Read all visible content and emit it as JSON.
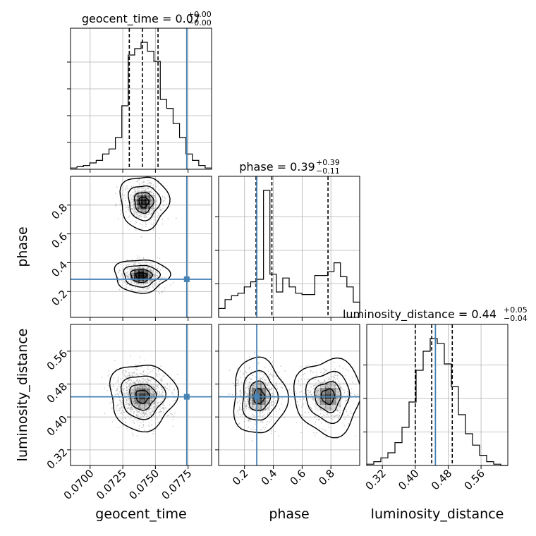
{
  "chart_data": {
    "type": "corner",
    "params": [
      "geocent_time",
      "phase",
      "luminosity_distance"
    ],
    "axis_labels": [
      "geocent_time",
      "phase",
      "luminosity_distance"
    ],
    "panel_titles": [
      {
        "name": "geocent_time",
        "median": "0.07",
        "plus": "+0.00",
        "minus": "−0.00"
      },
      {
        "name": "phase",
        "median": "0.39",
        "plus": "+0.39",
        "minus": "−0.11"
      },
      {
        "name": "luminosity_distance",
        "median": "0.44",
        "plus": "+0.05",
        "minus": "−0.04"
      }
    ],
    "ranges": {
      "geocent_time": [
        0.0685,
        0.0793
      ],
      "phase": [
        0.02,
        1.0
      ],
      "luminosity_distance": [
        0.282,
        0.625
      ]
    },
    "ticks": {
      "geocent_time": [
        {
          "v": 0.07,
          "label": "0.0700"
        },
        {
          "v": 0.0725,
          "label": "0.0725"
        },
        {
          "v": 0.075,
          "label": "0.0750"
        },
        {
          "v": 0.0775,
          "label": "0.0775"
        }
      ],
      "phase": [
        {
          "v": 0.2,
          "label": "0.2"
        },
        {
          "v": 0.4,
          "label": "0.4"
        },
        {
          "v": 0.6,
          "label": "0.6"
        },
        {
          "v": 0.8,
          "label": "0.8"
        }
      ],
      "luminosity_distance": [
        {
          "v": 0.32,
          "label": "0.32"
        },
        {
          "v": 0.4,
          "label": "0.40"
        },
        {
          "v": 0.48,
          "label": "0.48"
        },
        {
          "v": 0.56,
          "label": "0.56"
        }
      ]
    },
    "truth": {
      "geocent_time": 0.0774,
      "phase": 0.285,
      "luminosity_distance": 0.449
    },
    "quantiles": {
      "geocent_time": [
        0.073,
        0.074,
        0.0752
      ],
      "phase": [
        0.28,
        0.39,
        0.78
      ],
      "luminosity_distance": [
        0.4,
        0.44,
        0.49
      ]
    },
    "hist": {
      "geocent_time": [
        0.01,
        0.02,
        0.03,
        0.05,
        0.07,
        0.12,
        0.16,
        0.25,
        0.5,
        0.9,
        0.95,
        1.0,
        0.93,
        0.85,
        0.55,
        0.48,
        0.36,
        0.25,
        0.12,
        0.07,
        0.03,
        0.01
      ],
      "phase": [
        0.07,
        0.14,
        0.17,
        0.19,
        0.24,
        0.28,
        0.3,
        1.0,
        0.34,
        0.2,
        0.31,
        0.24,
        0.19,
        0.18,
        0.18,
        0.33,
        0.33,
        0.36,
        0.43,
        0.32,
        0.24,
        0.12
      ],
      "luminosity_distance": [
        0.01,
        0.03,
        0.06,
        0.1,
        0.18,
        0.3,
        0.5,
        0.75,
        0.9,
        1.0,
        0.96,
        0.8,
        0.62,
        0.4,
        0.25,
        0.16,
        0.08,
        0.03,
        0.01,
        0.0
      ]
    },
    "hist_yticks": {
      "geocent_time": [
        0.2,
        0.4,
        0.6,
        0.8
      ],
      "phase": [
        0.25,
        0.5,
        0.75
      ],
      "luminosity_distance": [
        0.25,
        0.5,
        0.75
      ]
    },
    "grid": true,
    "colors": {
      "truth": "#4682b4",
      "contour": "#000000",
      "points": "#9a9a9a",
      "grid": "#b0b0b0"
    }
  }
}
